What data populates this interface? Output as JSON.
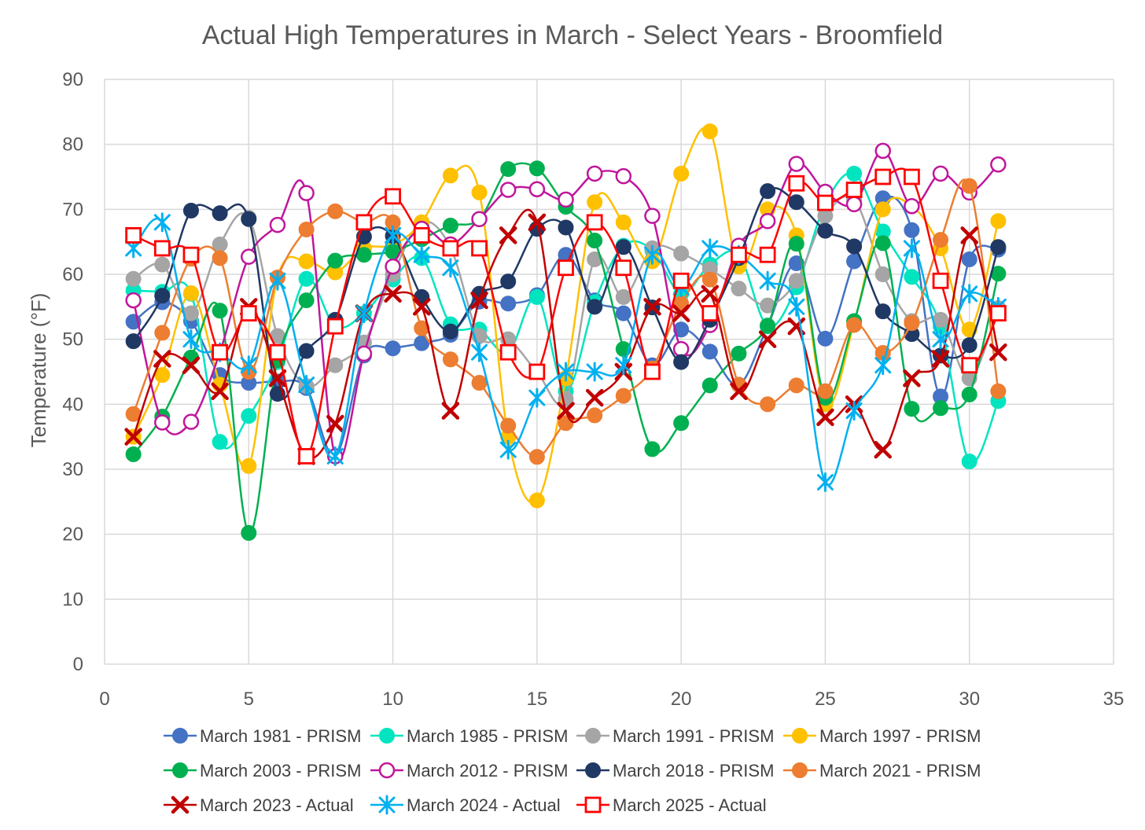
{
  "chart_data": {
    "type": "line",
    "title": "Actual High Temperatures in March - Select Years - Broomfield",
    "xlabel": "",
    "ylabel": "Temperature (°F)",
    "xlim": [
      0,
      35
    ],
    "ylim": [
      0,
      90
    ],
    "x_ticks": [
      0,
      5,
      10,
      15,
      20,
      25,
      30,
      35
    ],
    "y_ticks": [
      0,
      10,
      20,
      30,
      40,
      50,
      60,
      70,
      80,
      90
    ],
    "grid": true,
    "legend_position": "bottom",
    "x": [
      1,
      2,
      3,
      4,
      5,
      6,
      7,
      8,
      9,
      10,
      11,
      12,
      13,
      14,
      15,
      16,
      17,
      18,
      19,
      20,
      21,
      22,
      23,
      24,
      25,
      26,
      27,
      28,
      29,
      30,
      31
    ],
    "series": [
      {
        "name": "March 1981 - PRISM",
        "color": "#4472C4",
        "marker": "circle",
        "values": [
          52.7,
          55.7,
          52.8,
          44.5,
          43.3,
          43.5,
          42.5,
          32,
          47.5,
          48.6,
          49.4,
          50.7,
          55.8,
          55.5,
          56.8,
          63,
          56,
          54,
          46,
          51.5,
          48.1,
          43,
          52,
          61.7,
          50.1,
          62,
          71.7,
          66.8,
          41.2,
          62.3,
          63.8
        ]
      },
      {
        "name": "March 1985 - PRISM",
        "color": "#00E5C0",
        "marker": "circle",
        "values": [
          57.5,
          57.3,
          57,
          34.2,
          38.2,
          46.5,
          59.3,
          52,
          54,
          59.2,
          62.5,
          52.3,
          51.5,
          48,
          56.5,
          42,
          55.7,
          64.4,
          63.7,
          57,
          61.5,
          63,
          52,
          58,
          70.8,
          75.5,
          66.6,
          59.6,
          52,
          31.2,
          40.5
        ]
      },
      {
        "name": "March 1991 - PRISM",
        "color": "#A5A5A5",
        "marker": "circle",
        "values": [
          59.3,
          61.5,
          54,
          64.6,
          68.7,
          50.5,
          42.8,
          46,
          49.5,
          60,
          68,
          64.1,
          50.5,
          50,
          45,
          40.8,
          62.3,
          56.5,
          64,
          63.2,
          60.8,
          57.8,
          55.2,
          59,
          69,
          71.5,
          60,
          52.8,
          53,
          44,
          54.8
        ]
      },
      {
        "name": "March 1997 - PRISM",
        "color": "#FFC000",
        "marker": "circle",
        "values": [
          35,
          44.5,
          57.1,
          43,
          30.5,
          59.5,
          62,
          60.3,
          64,
          64.5,
          68,
          75.2,
          72.6,
          35,
          25.2,
          44,
          71.1,
          68,
          62,
          75.5,
          82,
          61.2,
          70,
          66,
          40,
          52.5,
          70,
          70.5,
          64,
          51.5,
          68.2
        ]
      },
      {
        "name": "March 2003 - PRISM",
        "color": "#00B050",
        "marker": "circle",
        "values": [
          32.3,
          38.1,
          47.2,
          54.4,
          20.2,
          46.8,
          56,
          62.1,
          63,
          63.5,
          65.4,
          67.5,
          68.5,
          76.2,
          76.3,
          70.4,
          65.2,
          48.5,
          33.1,
          37.1,
          42.9,
          47.8,
          52.1,
          64.7,
          41,
          52.8,
          64.8,
          39.3,
          39.4,
          41.5,
          60.1
        ]
      },
      {
        "name": "March 2012 - PRISM",
        "color": "#C0169B",
        "marker": "ring",
        "values": [
          56,
          37.2,
          37.3,
          48,
          62.7,
          67.6,
          72.5,
          32,
          47.8,
          61.2,
          67,
          64.6,
          68.5,
          73,
          73.1,
          71.5,
          75.5,
          75.1,
          69,
          48.5,
          52.2,
          64.4,
          68.2,
          77,
          72.7,
          70.8,
          79,
          70.5,
          75.5,
          72.6,
          76.9
        ]
      },
      {
        "name": "March 2018 - PRISM",
        "color": "#203864",
        "marker": "circle",
        "values": [
          49.7,
          56.7,
          69.8,
          69.4,
          68.5,
          41.6,
          48.2,
          53,
          65.8,
          65.9,
          56.5,
          51.2,
          57,
          58.9,
          67,
          67.2,
          55,
          64.2,
          54.9,
          46.5,
          53,
          62.5,
          72.8,
          71.1,
          66.7,
          64.3,
          54.3,
          50.8,
          47.5,
          49.1,
          64.2
        ]
      },
      {
        "name": "March 2021 - PRISM",
        "color": "#ED7D31",
        "marker": "circle",
        "values": [
          38.5,
          51,
          62.4,
          62.5,
          45,
          59.5,
          66.9,
          69.7,
          68,
          68,
          51.7,
          46.9,
          43.3,
          36.7,
          31.9,
          37.1,
          38.3,
          41.3,
          45.5,
          55.5,
          59.2,
          43,
          40,
          42.9,
          42,
          52.2,
          47.9,
          52.5,
          65.3,
          73.6,
          42
        ]
      },
      {
        "name": "March 2023 - Actual",
        "color": "#C00000",
        "marker": "x",
        "values": [
          35,
          47,
          46,
          42,
          55,
          44,
          32,
          37,
          54,
          57,
          55,
          39,
          56,
          66,
          68,
          39,
          41,
          45,
          55,
          54,
          57,
          42,
          50,
          52,
          38,
          40,
          33,
          44,
          47,
          66,
          48
        ]
      },
      {
        "name": "March 2024 - Actual",
        "color": "#00B0F0",
        "marker": "star",
        "values": [
          64,
          68,
          50,
          48,
          46,
          59,
          43,
          32,
          54,
          66,
          63,
          61,
          48,
          33,
          41,
          45,
          45,
          46,
          63,
          58,
          64,
          63,
          59,
          55,
          28,
          39,
          46,
          64,
          50,
          57,
          55
        ]
      },
      {
        "name": "March 2025 - Actual",
        "color": "#FF0000",
        "marker": "square",
        "values": [
          66,
          64,
          63,
          48,
          54,
          48,
          32,
          52,
          68,
          72,
          66,
          64,
          64,
          48,
          45,
          61,
          68,
          61,
          45,
          59,
          54,
          63,
          63,
          74,
          71,
          73,
          75,
          75,
          59,
          46,
          54
        ]
      }
    ]
  }
}
